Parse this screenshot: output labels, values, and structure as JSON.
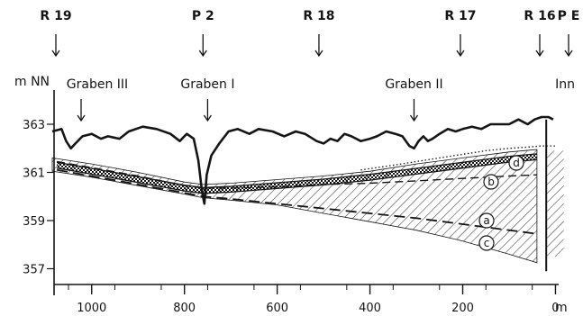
{
  "chart_data": {
    "type": "line",
    "xlabel": "m",
    "ylabel": "m NN",
    "xlim": [
      1085,
      0
    ],
    "ylim": [
      356,
      364
    ],
    "x_ticks": [
      {
        "value": 1000,
        "label": "1000"
      },
      {
        "value": 800,
        "label": "800"
      },
      {
        "value": 600,
        "label": "600"
      },
      {
        "value": 400,
        "label": "400"
      },
      {
        "value": 200,
        "label": "200"
      },
      {
        "value": 0,
        "label": "0"
      }
    ],
    "y_ticks": [
      {
        "value": 363,
        "label": "363"
      },
      {
        "value": 361,
        "label": "361"
      },
      {
        "value": 359,
        "label": "359"
      },
      {
        "value": 357,
        "label": "357"
      }
    ],
    "wells": [
      {
        "label": "R 19",
        "x": 1080
      },
      {
        "label": "P 2",
        "x": 760
      },
      {
        "label": "R 18",
        "x": 510
      },
      {
        "label": "R 17",
        "x": 205
      },
      {
        "label": "R 16",
        "x": 25
      },
      {
        "label": "P E",
        "x": 0
      }
    ],
    "features": [
      {
        "label": "Graben III",
        "x": 1050
      },
      {
        "label": "Graben I",
        "x": 750
      },
      {
        "label": "Graben II",
        "x": 305
      },
      {
        "label": "Inn",
        "x": 0
      }
    ],
    "series": [
      {
        "key": "surface",
        "x": [
          1085,
          1065,
          1055,
          1045,
          1035,
          1020,
          1000,
          980,
          965,
          940,
          920,
          890,
          860,
          830,
          810,
          795,
          780,
          770,
          762,
          757,
          752,
          742,
          725,
          705,
          685,
          660,
          640,
          610,
          585,
          560,
          540,
          515,
          500,
          485,
          470,
          455,
          440,
          420,
          400,
          385,
          365,
          345,
          330,
          315,
          305,
          295,
          285,
          275,
          265,
          250,
          232,
          215,
          200,
          180,
          160,
          140,
          120,
          100,
          80,
          60,
          45,
          30,
          15,
          5
        ],
        "y": [
          362.7,
          362.8,
          362.3,
          362.0,
          362.2,
          362.5,
          362.6,
          362.4,
          362.5,
          362.4,
          362.7,
          362.9,
          362.8,
          362.6,
          362.3,
          362.6,
          362.4,
          361.5,
          360.2,
          359.7,
          360.9,
          361.7,
          362.2,
          362.7,
          362.8,
          362.6,
          362.8,
          362.7,
          362.5,
          362.7,
          362.6,
          362.3,
          362.2,
          362.4,
          362.3,
          362.6,
          362.5,
          362.3,
          362.4,
          362.5,
          362.7,
          362.6,
          362.5,
          362.1,
          362.0,
          362.3,
          362.5,
          362.3,
          362.4,
          362.6,
          362.8,
          362.7,
          362.8,
          362.9,
          362.8,
          363.0,
          363.0,
          363.0,
          363.2,
          363.0,
          363.2,
          363.3,
          363.3,
          363.2
        ]
      },
      {
        "key": "d",
        "label": "d",
        "x": [
          1075,
          1000,
          900,
          800,
          760,
          700,
          600,
          500,
          400,
          300,
          200,
          100,
          40
        ],
        "y": [
          361.3,
          361.05,
          360.7,
          360.35,
          360.25,
          360.3,
          360.45,
          360.6,
          360.8,
          361.05,
          361.3,
          361.55,
          361.65
        ]
      },
      {
        "key": "b",
        "label": "b",
        "x": [
          1075,
          1000,
          900,
          800,
          760,
          700,
          600,
          500,
          400,
          300,
          200,
          100,
          40
        ],
        "y": [
          361.45,
          361.2,
          360.85,
          360.45,
          360.35,
          360.35,
          360.4,
          360.5,
          360.55,
          360.65,
          360.75,
          360.85,
          360.9
        ]
      },
      {
        "key": "a",
        "label": "a",
        "x": [
          1075,
          1000,
          900,
          800,
          760,
          700,
          600,
          500,
          400,
          300,
          200,
          100,
          40
        ],
        "y": [
          361.1,
          360.85,
          360.5,
          360.15,
          360.0,
          359.9,
          359.7,
          359.5,
          359.3,
          359.1,
          358.85,
          358.6,
          358.45
        ]
      },
      {
        "key": "c",
        "label": "c",
        "x": [
          1075,
          1000,
          900,
          800,
          760,
          700,
          600,
          500,
          400,
          300,
          200,
          100,
          40
        ],
        "y": [
          361.05,
          360.8,
          360.45,
          360.1,
          359.95,
          359.85,
          359.65,
          359.3,
          358.95,
          358.6,
          358.15,
          357.6,
          357.25
        ]
      },
      {
        "key": "dotted",
        "x": [
          420,
          350,
          300,
          250,
          200,
          150,
          100,
          60,
          30,
          0
        ],
        "y": [
          361.1,
          361.3,
          361.45,
          361.6,
          361.75,
          361.9,
          362.0,
          362.05,
          362.1,
          362.1
        ]
      }
    ],
    "hatched_zone": {
      "upper": [
        {
          "x": 1085,
          "y": 361.6
        },
        {
          "x": 1000,
          "y": 361.35
        },
        {
          "x": 900,
          "y": 361.0
        },
        {
          "x": 800,
          "y": 360.6
        },
        {
          "x": 760,
          "y": 360.5
        },
        {
          "x": 700,
          "y": 360.55
        },
        {
          "x": 600,
          "y": 360.7
        },
        {
          "x": 500,
          "y": 360.85
        },
        {
          "x": 400,
          "y": 361.05
        },
        {
          "x": 300,
          "y": 361.35
        },
        {
          "x": 200,
          "y": 361.6
        },
        {
          "x": 100,
          "y": 361.85
        },
        {
          "x": 40,
          "y": 361.95
        }
      ],
      "lower": [
        {
          "x": 40,
          "y": 357.25
        },
        {
          "x": 100,
          "y": 357.6
        },
        {
          "x": 200,
          "y": 358.15
        },
        {
          "x": 300,
          "y": 358.6
        },
        {
          "x": 400,
          "y": 358.95
        },
        {
          "x": 500,
          "y": 359.3
        },
        {
          "x": 600,
          "y": 359.65
        },
        {
          "x": 700,
          "y": 359.85
        },
        {
          "x": 760,
          "y": 359.95
        },
        {
          "x": 800,
          "y": 360.1
        },
        {
          "x": 900,
          "y": 360.45
        },
        {
          "x": 1000,
          "y": 360.8
        },
        {
          "x": 1085,
          "y": 361.05
        }
      ]
    }
  }
}
